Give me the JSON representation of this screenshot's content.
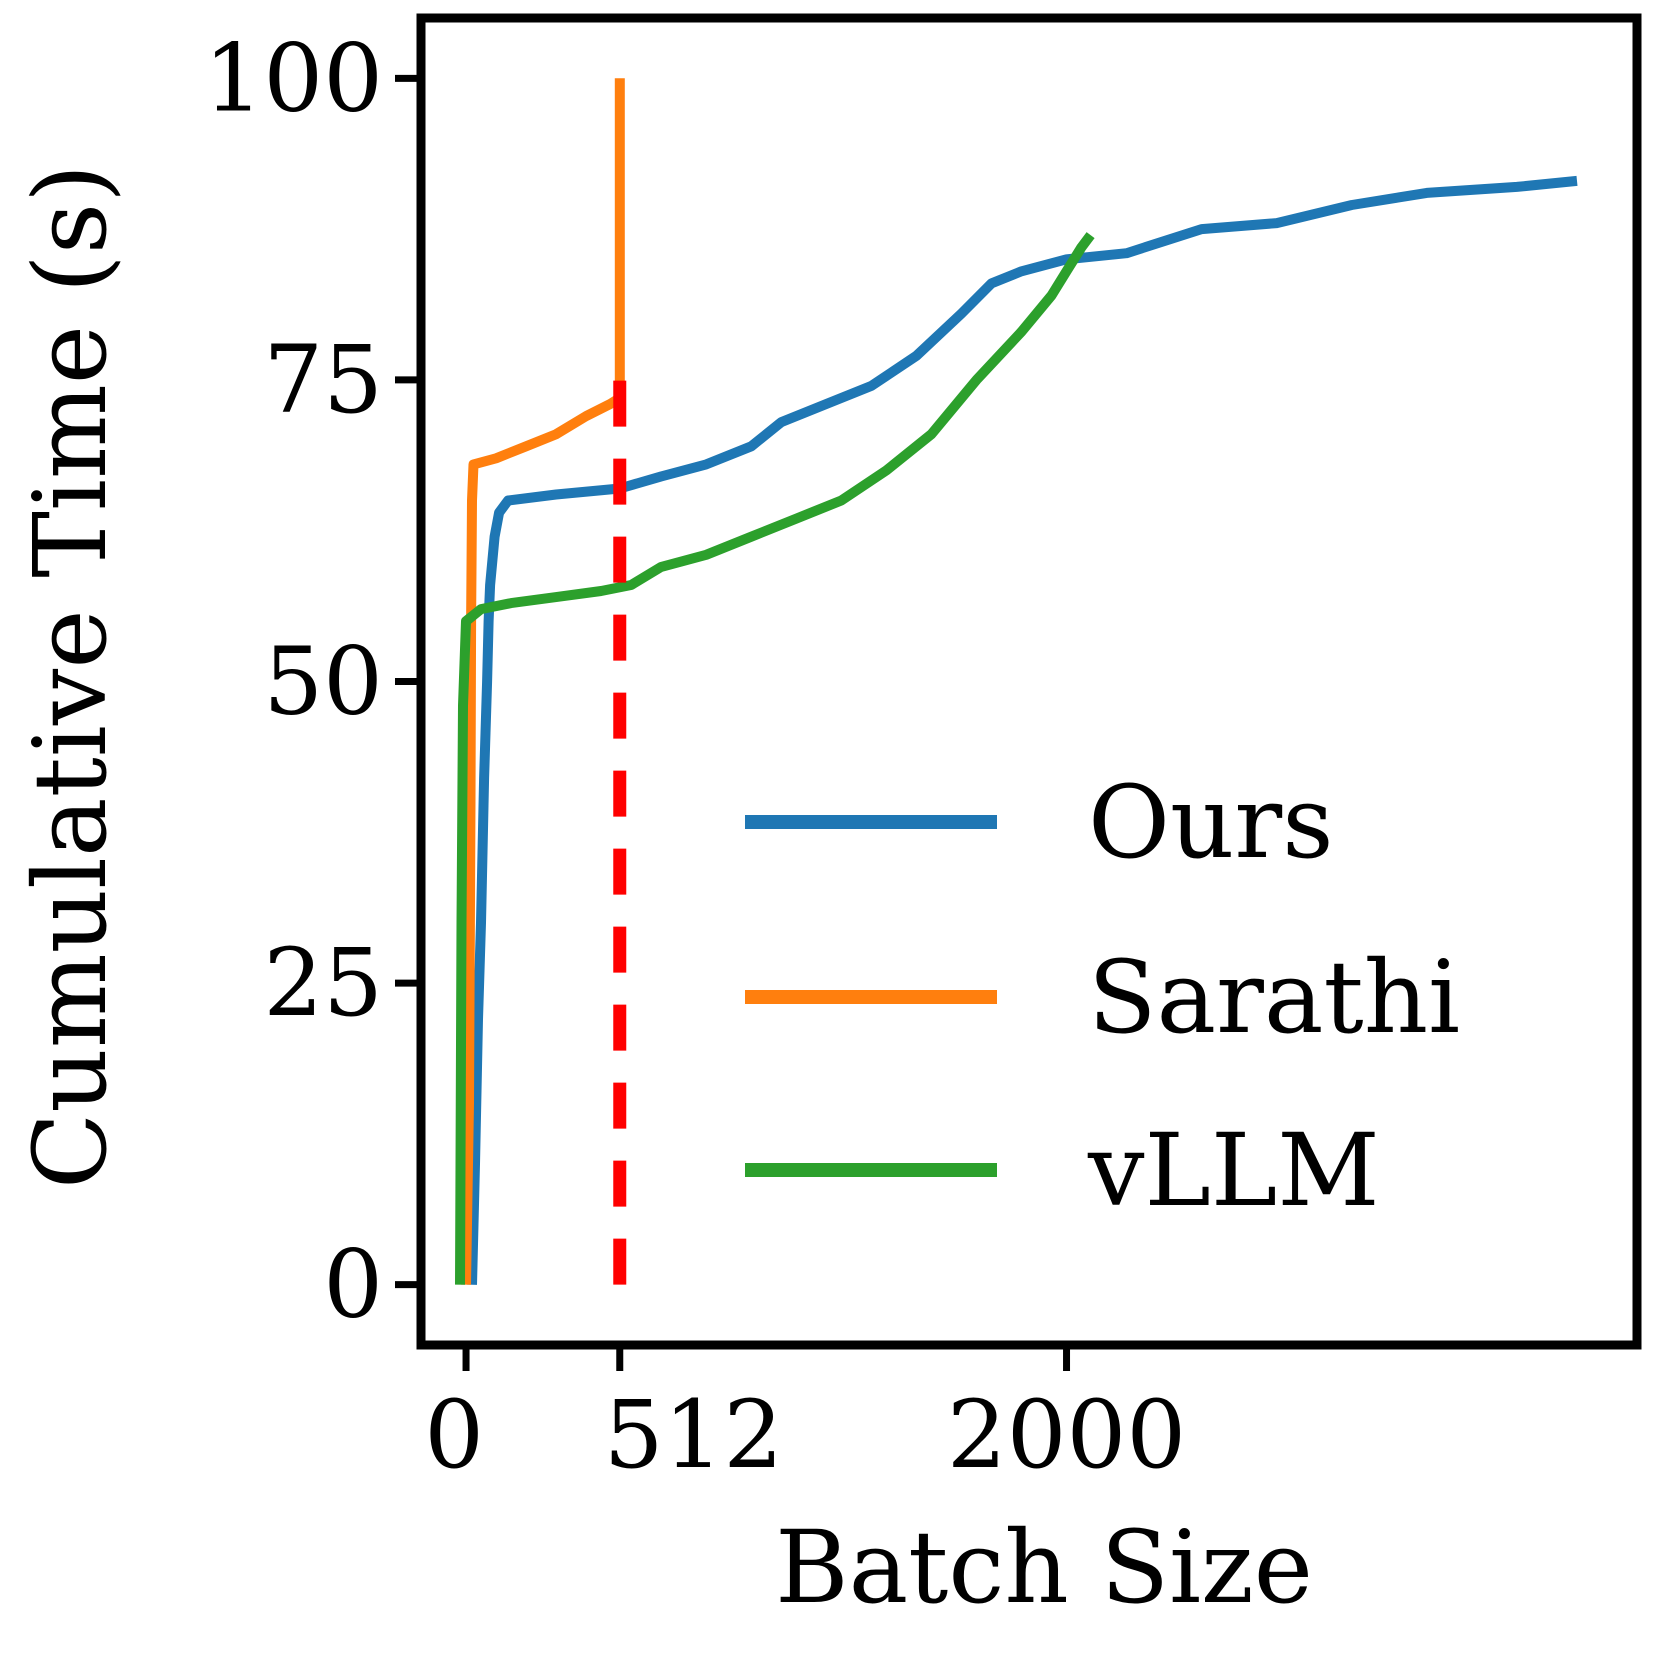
{
  "chart_data": {
    "type": "line",
    "title": "",
    "xlabel": "Batch Size",
    "ylabel": "Cumulative Time (s)",
    "xlim": [
      -150,
      3900
    ],
    "ylim": [
      -5,
      105
    ],
    "x_ticks": [
      0,
      512,
      2000
    ],
    "x_tick_labels": [
      "0",
      "512",
      "2000"
    ],
    "y_ticks": [
      0,
      25,
      50,
      75,
      100
    ],
    "y_tick_labels": [
      "0",
      "25",
      "50",
      "75",
      "100"
    ],
    "grid": false,
    "legend_position": "lower-right",
    "series": [
      {
        "name": "Ours",
        "color": "#1f77b4",
        "points": [
          [
            20,
            0
          ],
          [
            30,
            10
          ],
          [
            40,
            22
          ],
          [
            50,
            30
          ],
          [
            60,
            42
          ],
          [
            70,
            50
          ],
          [
            75,
            55
          ],
          [
            80,
            58
          ],
          [
            95,
            62
          ],
          [
            110,
            64
          ],
          [
            140,
            65
          ],
          [
            300,
            65.5
          ],
          [
            512,
            66
          ],
          [
            650,
            67
          ],
          [
            800,
            68
          ],
          [
            950,
            69.5
          ],
          [
            1050,
            71.5
          ],
          [
            1200,
            73
          ],
          [
            1350,
            74.5
          ],
          [
            1500,
            77
          ],
          [
            1650,
            80.5
          ],
          [
            1750,
            83
          ],
          [
            1850,
            84
          ],
          [
            2000,
            85
          ],
          [
            2200,
            85.5
          ],
          [
            2450,
            87.5
          ],
          [
            2700,
            88
          ],
          [
            2950,
            89.5
          ],
          [
            3200,
            90.5
          ],
          [
            3500,
            91
          ],
          [
            3700,
            91.5
          ]
        ]
      },
      {
        "name": "Sarathi",
        "color": "#ff7f0e",
        "points": [
          [
            0,
            0
          ],
          [
            10,
            15
          ],
          [
            15,
            40
          ],
          [
            17,
            55
          ],
          [
            20,
            65
          ],
          [
            25,
            68
          ],
          [
            100,
            68.5
          ],
          [
            200,
            69.5
          ],
          [
            300,
            70.5
          ],
          [
            400,
            72
          ],
          [
            480,
            73
          ],
          [
            512,
            73.5
          ],
          [
            512,
            100
          ]
        ]
      },
      {
        "name": "vLLM",
        "color": "#2ca02c",
        "points": [
          [
            -20,
            0
          ],
          [
            -15,
            30
          ],
          [
            -10,
            48
          ],
          [
            0,
            55
          ],
          [
            50,
            56
          ],
          [
            150,
            56.5
          ],
          [
            300,
            57
          ],
          [
            450,
            57.5
          ],
          [
            550,
            58
          ],
          [
            650,
            59.5
          ],
          [
            800,
            60.5
          ],
          [
            950,
            62
          ],
          [
            1100,
            63.5
          ],
          [
            1250,
            65
          ],
          [
            1400,
            67.5
          ],
          [
            1550,
            70.5
          ],
          [
            1700,
            75
          ],
          [
            1850,
            79
          ],
          [
            1950,
            82
          ],
          [
            2000,
            84
          ],
          [
            2050,
            86
          ],
          [
            2080,
            87
          ]
        ]
      }
    ],
    "reference_line": {
      "x": 512,
      "y_range": [
        0,
        75
      ],
      "color": "#ff0000",
      "style": "dashed"
    }
  }
}
